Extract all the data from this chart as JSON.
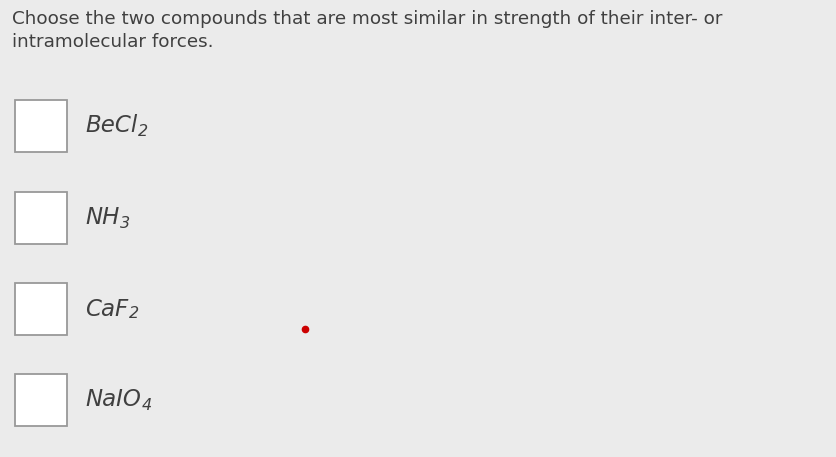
{
  "background_color": "#ebebeb",
  "question_text_line1": "Choose the two compounds that are most similar in strength of their inter- or",
  "question_text_line2": "intramolecular forces.",
  "compounds": [
    {
      "main": "BeCl",
      "sub": "2"
    },
    {
      "main": "NH",
      "sub": "3"
    },
    {
      "main": "CaF",
      "sub": "2"
    },
    {
      "main": "NaIO",
      "sub": "4"
    }
  ],
  "q_fontsize": 13.2,
  "label_fontsize": 16.5,
  "sub_fontsize": 11.5,
  "box_color": "#ffffff",
  "box_edge_color": "#999999",
  "text_color": "#404040",
  "dot_color": "#cc0000",
  "dot_size": 4.5,
  "fig_width": 8.37,
  "fig_height": 4.57,
  "dpi": 100
}
